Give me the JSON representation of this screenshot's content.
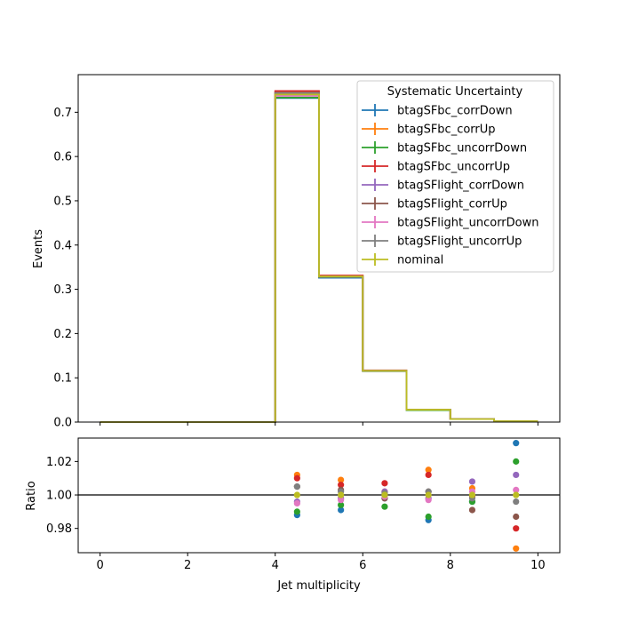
{
  "chart_data": [
    {
      "type": "line",
      "subtype": "step-histogram",
      "ylabel": "Events",
      "bin_edges": [
        0,
        1,
        2,
        3,
        4,
        5,
        6,
        7,
        8,
        9,
        10
      ],
      "xlim": [
        -0.5,
        10.5
      ],
      "ylim": [
        0,
        0.785
      ],
      "xticks": [
        0,
        2,
        4,
        6,
        8,
        10
      ],
      "yticks": [
        0.0,
        0.1,
        0.2,
        0.3,
        0.4,
        0.5,
        0.6,
        0.7
      ],
      "ytick_labels": [
        "0.0",
        "0.1",
        "0.2",
        "0.3",
        "0.4",
        "0.5",
        "0.6",
        "0.7"
      ],
      "legend": {
        "title": "Systematic Uncertainty",
        "placement": "top-right"
      },
      "series": [
        {
          "name": "btagSFbc_corrDown",
          "color": "#1f77b4",
          "values": [
            0,
            0,
            0,
            0,
            0.732,
            0.326,
            0.116,
            0.027,
            0.0068,
            0.0021
          ]
        },
        {
          "name": "btagSFbc_corrUp",
          "color": "#ff7f0e",
          "values": [
            0,
            0,
            0,
            0,
            0.746,
            0.331,
            0.116,
            0.028,
            0.0068,
            0.002
          ]
        },
        {
          "name": "btagSFbc_uncorrDown",
          "color": "#2ca02c",
          "values": [
            0,
            0,
            0,
            0,
            0.733,
            0.327,
            0.115,
            0.027,
            0.0068,
            0.0021
          ]
        },
        {
          "name": "btagSFbc_uncorrUp",
          "color": "#d62728",
          "values": [
            0,
            0,
            0,
            0,
            0.748,
            0.331,
            0.117,
            0.028,
            0.0068,
            0.002
          ]
        },
        {
          "name": "btagSFlight_corrDown",
          "color": "#9467bd",
          "values": [
            0,
            0,
            0,
            0,
            0.737,
            0.328,
            0.116,
            0.028,
            0.0069,
            0.0021
          ]
        },
        {
          "name": "btagSFlight_corrUp",
          "color": "#8c564b",
          "values": [
            0,
            0,
            0,
            0,
            0.744,
            0.329,
            0.116,
            0.028,
            0.0068,
            0.002
          ]
        },
        {
          "name": "btagSFlight_uncorrDown",
          "color": "#e377c2",
          "values": [
            0,
            0,
            0,
            0,
            0.737,
            0.329,
            0.116,
            0.028,
            0.0068,
            0.002
          ]
        },
        {
          "name": "btagSFlight_uncorrUp",
          "color": "#7f7f7f",
          "values": [
            0,
            0,
            0,
            0,
            0.744,
            0.329,
            0.116,
            0.028,
            0.0068,
            0.002
          ]
        },
        {
          "name": "nominal",
          "color": "#bcbd22",
          "values": [
            0,
            0,
            0,
            0,
            0.74,
            0.329,
            0.116,
            0.028,
            0.0068,
            0.002
          ]
        }
      ]
    },
    {
      "type": "scatter",
      "xlabel": "Jet multiplicity",
      "ylabel": "Ratio",
      "xlim": [
        -0.5,
        10.5
      ],
      "ylim": [
        0.9655,
        1.034
      ],
      "xticks": [
        0,
        2,
        4,
        6,
        8,
        10
      ],
      "xtick_labels": [
        "0",
        "2",
        "4",
        "6",
        "8",
        "10"
      ],
      "yticks": [
        0.98,
        1.0,
        1.02
      ],
      "ytick_labels": [
        "0.98",
        "1.00",
        "1.02"
      ],
      "reference_line": 1.0,
      "x": [
        4.5,
        5.5,
        6.5,
        7.5,
        8.5,
        9.5
      ],
      "series": [
        {
          "name": "btagSFbc_corrDown",
          "color": "#1f77b4",
          "values": [
            0.988,
            0.991,
            0.998,
            0.985,
            0.996,
            1.031
          ]
        },
        {
          "name": "btagSFbc_corrUp",
          "color": "#ff7f0e",
          "values": [
            1.012,
            1.009,
            1.002,
            1.015,
            1.004,
            0.968
          ]
        },
        {
          "name": "btagSFbc_uncorrDown",
          "color": "#2ca02c",
          "values": [
            0.99,
            0.994,
            0.993,
            0.987,
            0.996,
            1.02
          ]
        },
        {
          "name": "btagSFbc_uncorrUp",
          "color": "#d62728",
          "values": [
            1.01,
            1.006,
            1.007,
            1.012,
            0.999,
            0.98
          ]
        },
        {
          "name": "btagSFlight_corrDown",
          "color": "#9467bd",
          "values": [
            0.996,
            0.998,
            1.002,
            0.998,
            1.008,
            1.012
          ]
        },
        {
          "name": "btagSFlight_corrUp",
          "color": "#8c564b",
          "values": [
            1.005,
            1.003,
            0.998,
            1.002,
            0.991,
            0.987
          ]
        },
        {
          "name": "btagSFlight_uncorrDown",
          "color": "#e377c2",
          "values": [
            0.995,
            0.997,
            0.999,
            0.997,
            1.002,
            1.003
          ]
        },
        {
          "name": "btagSFlight_uncorrUp",
          "color": "#7f7f7f",
          "values": [
            1.005,
            1.002,
            1.001,
            1.002,
            0.998,
            0.996
          ]
        },
        {
          "name": "nominal",
          "color": "#bcbd22",
          "values": [
            1.0,
            1.0,
            1.0,
            1.0,
            1.0,
            1.0
          ]
        }
      ]
    }
  ]
}
